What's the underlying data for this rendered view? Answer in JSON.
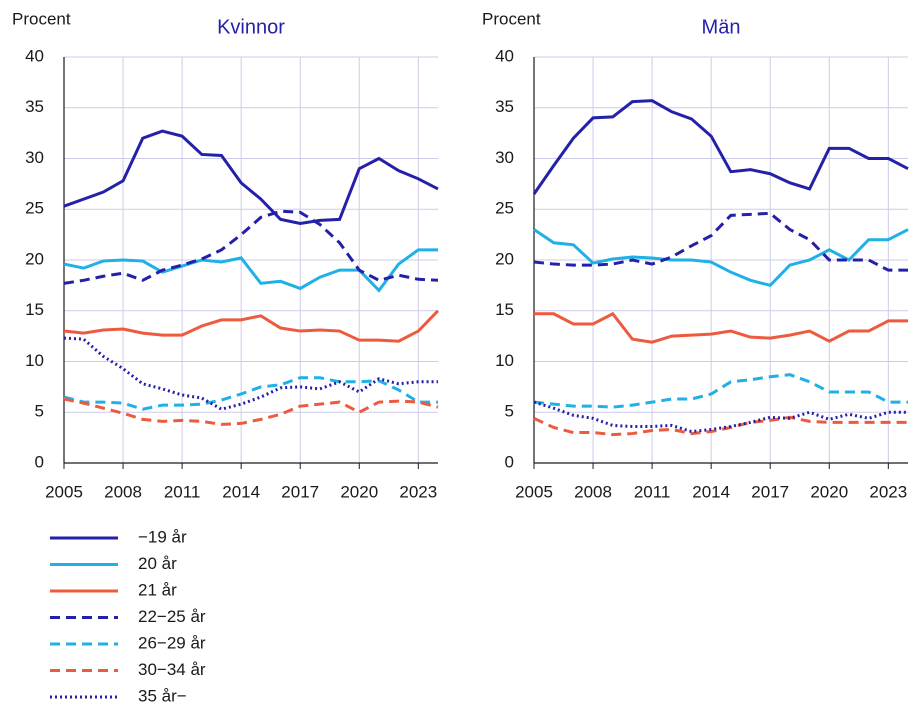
{
  "chart_data": [
    {
      "type": "line",
      "title": "Kvinnor",
      "y_label": "Procent",
      "x": [
        2005,
        2006,
        2007,
        2008,
        2009,
        2010,
        2011,
        2012,
        2013,
        2014,
        2015,
        2016,
        2017,
        2018,
        2019,
        2020,
        2021,
        2022,
        2023,
        2024
      ],
      "xlim": [
        2005,
        2024
      ],
      "xticks": [
        2005,
        2008,
        2011,
        2014,
        2017,
        2020,
        2023
      ],
      "ylim": [
        0,
        40
      ],
      "yticks": [
        0,
        5,
        10,
        15,
        20,
        25,
        30,
        35,
        40
      ],
      "grid": true,
      "series": [
        {
          "name": "−19 år",
          "color": "#2420a8",
          "dash": "solid",
          "values": [
            25.3,
            26,
            26.7,
            27.8,
            32,
            32.7,
            32.2,
            30.4,
            30.3,
            27.6,
            26,
            24,
            23.6,
            23.9,
            24,
            29,
            30,
            28.8,
            28,
            27
          ]
        },
        {
          "name": "20 år",
          "color": "#1fb0e6",
          "dash": "solid",
          "values": [
            19.6,
            19.2,
            19.9,
            20,
            19.9,
            18.8,
            19.4,
            20,
            19.8,
            20.2,
            17.7,
            17.9,
            17.2,
            18.3,
            19,
            19,
            17,
            19.6,
            21,
            21
          ]
        },
        {
          "name": "21 år",
          "color": "#ee5a3e",
          "dash": "solid",
          "values": [
            13,
            12.8,
            13.1,
            13.2,
            12.8,
            12.6,
            12.6,
            13.5,
            14.1,
            14.1,
            14.5,
            13.3,
            13,
            13.1,
            13,
            12.1,
            12.1,
            12,
            13,
            15
          ]
        },
        {
          "name": "22−25 år",
          "color": "#2420a8",
          "dash": "dashed",
          "values": [
            17.7,
            18,
            18.4,
            18.7,
            18,
            19,
            19.5,
            20.1,
            21,
            22.5,
            24.2,
            24.8,
            24.7,
            23.5,
            21.7,
            19,
            18,
            18.5,
            18.1,
            18
          ]
        },
        {
          "name": "26−29 år",
          "color": "#1fb0e6",
          "dash": "dashed",
          "values": [
            6.5,
            6,
            6,
            5.9,
            5.3,
            5.7,
            5.7,
            5.8,
            6.2,
            6.8,
            7.5,
            7.7,
            8.4,
            8.4,
            8,
            8,
            8.1,
            7.2,
            6,
            6
          ]
        },
        {
          "name": "30−34 år",
          "color": "#ee5a3e",
          "dash": "dashed",
          "values": [
            6.3,
            5.9,
            5.4,
            4.9,
            4.3,
            4.1,
            4.2,
            4.1,
            3.8,
            3.9,
            4.3,
            4.8,
            5.6,
            5.8,
            6,
            5,
            6,
            6.1,
            6,
            5.5
          ]
        },
        {
          "name": "35 år−",
          "color": "#2420a8",
          "dash": "dotted",
          "values": [
            12.3,
            12.2,
            10.5,
            9.3,
            7.8,
            7.3,
            6.7,
            6.4,
            5.3,
            5.8,
            6.5,
            7.4,
            7.5,
            7.3,
            8,
            7,
            8.3,
            7.8,
            8,
            8
          ]
        }
      ]
    },
    {
      "type": "line",
      "title": "Män",
      "y_label": "Procent",
      "x": [
        2005,
        2006,
        2007,
        2008,
        2009,
        2010,
        2011,
        2012,
        2013,
        2014,
        2015,
        2016,
        2017,
        2018,
        2019,
        2020,
        2021,
        2022,
        2023,
        2024
      ],
      "xlim": [
        2005,
        2024
      ],
      "xticks": [
        2005,
        2008,
        2011,
        2014,
        2017,
        2020,
        2023
      ],
      "ylim": [
        0,
        40
      ],
      "yticks": [
        0,
        5,
        10,
        15,
        20,
        25,
        30,
        35,
        40
      ],
      "grid": true,
      "series": [
        {
          "color": "#2420a8",
          "dash": "solid",
          "values": [
            26.5,
            29.3,
            32,
            34,
            34.1,
            35.6,
            35.7,
            34.6,
            33.9,
            32.2,
            28.7,
            28.9,
            28.5,
            27.6,
            27,
            31,
            31,
            30,
            30,
            29
          ]
        },
        {
          "color": "#1fb0e6",
          "dash": "solid",
          "values": [
            23,
            21.7,
            21.5,
            19.7,
            20.1,
            20.3,
            20.2,
            20,
            20,
            19.8,
            18.8,
            18,
            17.5,
            19.5,
            20,
            21,
            20,
            22,
            22,
            23
          ]
        },
        {
          "color": "#ee5a3e",
          "dash": "solid",
          "values": [
            14.7,
            14.7,
            13.7,
            13.7,
            14.7,
            12.2,
            11.9,
            12.5,
            12.6,
            12.7,
            13,
            12.4,
            12.3,
            12.6,
            13,
            12,
            13,
            13,
            14,
            14
          ]
        },
        {
          "color": "#2420a8",
          "dash": "dashed",
          "values": [
            19.8,
            19.6,
            19.5,
            19.5,
            19.6,
            20,
            19.6,
            20.3,
            21.4,
            22.4,
            24.4,
            24.5,
            24.6,
            23,
            22,
            20,
            20,
            20,
            19,
            19
          ]
        },
        {
          "color": "#1fb0e6",
          "dash": "dashed",
          "values": [
            6,
            5.8,
            5.6,
            5.6,
            5.5,
            5.7,
            6,
            6.3,
            6.3,
            6.8,
            8,
            8.2,
            8.5,
            8.7,
            8,
            7,
            7,
            7,
            6,
            6
          ]
        },
        {
          "color": "#ee5a3e",
          "dash": "dashed",
          "values": [
            4.4,
            3.5,
            3,
            3,
            2.8,
            2.9,
            3.2,
            3.3,
            2.9,
            3.1,
            3.5,
            4,
            4.2,
            4.5,
            4.1,
            4,
            4,
            4,
            4,
            4
          ]
        },
        {
          "color": "#2420a8",
          "dash": "dotted",
          "values": [
            6,
            5.4,
            4.7,
            4.4,
            3.7,
            3.6,
            3.6,
            3.7,
            3.1,
            3.3,
            3.6,
            4,
            4.5,
            4.4,
            5,
            4.3,
            4.8,
            4.4,
            5,
            5
          ]
        }
      ]
    }
  ]
}
